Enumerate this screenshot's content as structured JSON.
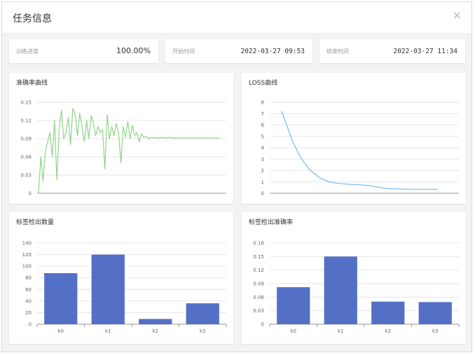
{
  "dialog": {
    "title": "任务信息",
    "close_symbol": "×"
  },
  "info": {
    "progress_label": "训练进度",
    "progress_value": "100.00%",
    "start_label": "开始时间",
    "start_value": "2022-03-27 09:53",
    "end_label": "结束时间",
    "end_value": "2022-03-27 11:34"
  },
  "colors": {
    "accuracy_line": "#91d58a",
    "loss_line": "#74b9f0",
    "bar": "#5470c6",
    "axis": "#999999",
    "grid": "#e6e6e6"
  },
  "chart_data": [
    {
      "id": "accuracy",
      "type": "line",
      "title": "准确率曲线",
      "ylim": [
        0,
        0.15
      ],
      "yticks": [
        "0",
        "0.03",
        "0.06",
        "0.09",
        "0.12",
        "0.15"
      ],
      "values": [
        0,
        0.06,
        0.02,
        0.07,
        0.085,
        0.1,
        0.06,
        0.12,
        0.022,
        0.105,
        0.137,
        0.09,
        0.1,
        0.125,
        0.08,
        0.14,
        0.13,
        0.095,
        0.132,
        0.11,
        0.085,
        0.12,
        0.09,
        0.128,
        0.115,
        0.095,
        0.11,
        0.1,
        0.105,
        0.04,
        0.13,
        0.09,
        0.11,
        0.095,
        0.115,
        0.1,
        0.05,
        0.11,
        0.092,
        0.118,
        0.09,
        0.112,
        0.095,
        0.1,
        0.085,
        0.098,
        0.092,
        0.094,
        0.09,
        0.092,
        0.091,
        0.092,
        0.091,
        0.091,
        0.092,
        0.091,
        0.091,
        0.092,
        0.091,
        0.091,
        0.091,
        0.091,
        0.091,
        0.091,
        0.091,
        0.091,
        0.091,
        0.091,
        0.091,
        0.091,
        0.091,
        0.091,
        0.091,
        0.091,
        0.091,
        0.091,
        0.091,
        0.091,
        0.091,
        0.091
      ]
    },
    {
      "id": "loss",
      "type": "line",
      "title": "LOSS曲线",
      "ylim": [
        0,
        8
      ],
      "yticks": [
        "0",
        "1",
        "2",
        "3",
        "4",
        "5",
        "6",
        "7",
        "8"
      ],
      "values": [
        7.2,
        5.9,
        4.6,
        3.6,
        2.8,
        2.2,
        1.75,
        1.4,
        1.15,
        1.0,
        0.9,
        0.85,
        0.8,
        0.78,
        0.76,
        0.72,
        0.68,
        0.6,
        0.52,
        0.45,
        0.4,
        0.38,
        0.37,
        0.36,
        0.36,
        0.35,
        0.35,
        0.35,
        0.35,
        0.35
      ]
    },
    {
      "id": "label_count",
      "type": "bar",
      "title": "标签检出数量",
      "ylim": [
        0,
        140
      ],
      "yticks": [
        "0",
        "20",
        "40",
        "60",
        "80",
        "100",
        "120",
        "140"
      ],
      "categories": [
        "k0",
        "k1",
        "k2",
        "k3"
      ],
      "values": [
        88,
        120,
        9,
        36
      ]
    },
    {
      "id": "label_accuracy",
      "type": "bar",
      "title": "标签检出准确率",
      "ylim": [
        0,
        0.18
      ],
      "yticks": [
        "0",
        "0.03",
        "0.06",
        "0.09",
        "0.12",
        "0.15",
        "0.18"
      ],
      "categories": [
        "k0",
        "k1",
        "k2",
        "k3"
      ],
      "values": [
        0.082,
        0.15,
        0.05,
        0.049
      ]
    }
  ]
}
